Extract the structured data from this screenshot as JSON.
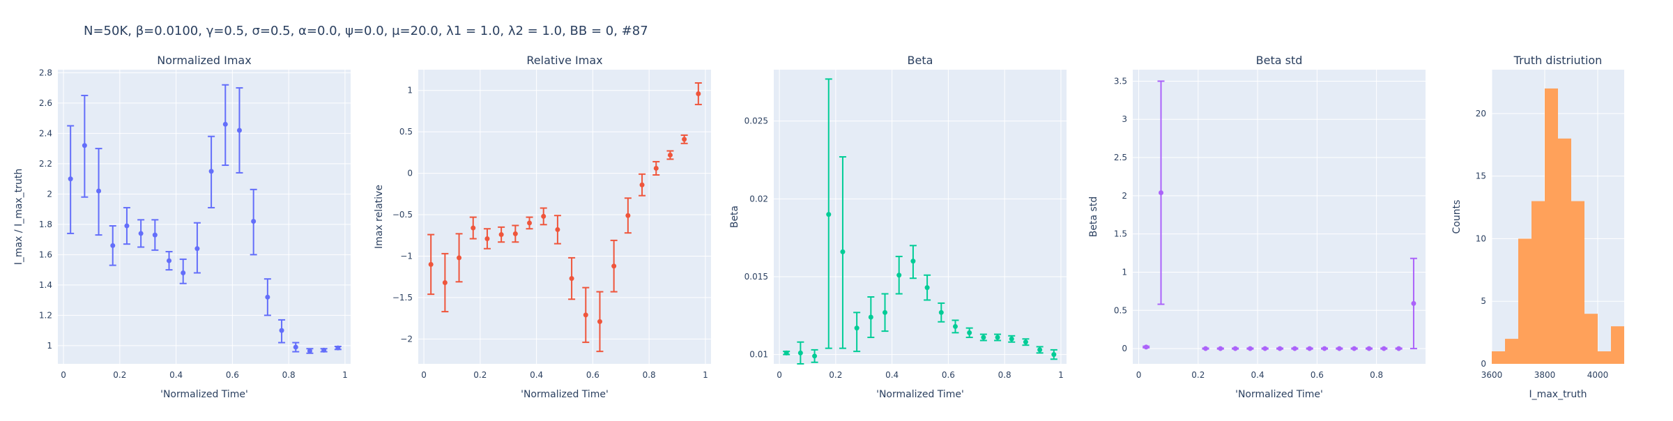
{
  "figure": {
    "suptitle": "N=50K, β=0.0100, γ=0.5, σ=0.5,  α=0.0, ψ=0.0, μ=20.0, λ1 = 1.0, λ2 = 1.0, BB = 0, #87"
  },
  "colors": {
    "plot_bg": "#e5ecf6",
    "grid": "#ffffff",
    "text": "#2a3f5f",
    "s1": "#636efa",
    "s2": "#ef553b",
    "s3": "#00cc96",
    "s4": "#ab63fa",
    "s5": "#ffa15a"
  },
  "chart_data": [
    {
      "type": "scatter",
      "title": "Normalized Imax",
      "xlabel": "'Normalized Time'",
      "ylabel": "I_max / I_max_truth",
      "xlim": [
        -0.02,
        1.02
      ],
      "ylim": [
        0.88,
        2.82
      ],
      "xticks": [
        0,
        0.2,
        0.4,
        0.6,
        0.8,
        1
      ],
      "xtick_labels": [
        "0",
        "0.2",
        "0.4",
        "0.6",
        "0.8",
        "1"
      ],
      "yticks": [
        1,
        1.2,
        1.4,
        1.6,
        1.8,
        2,
        2.2,
        2.4,
        2.6,
        2.8
      ],
      "ytick_labels": [
        "1",
        "1.2",
        "1.4",
        "1.6",
        "1.8",
        "2",
        "2.2",
        "2.4",
        "2.6",
        "2.8"
      ],
      "grid": true,
      "series": [
        {
          "color": "#636efa",
          "x": [
            0.025,
            0.075,
            0.125,
            0.175,
            0.225,
            0.275,
            0.325,
            0.375,
            0.425,
            0.475,
            0.525,
            0.575,
            0.625,
            0.675,
            0.725,
            0.775,
            0.825,
            0.875,
            0.925,
            0.975
          ],
          "y": [
            2.1,
            2.32,
            2.02,
            1.66,
            1.79,
            1.74,
            1.73,
            1.56,
            1.48,
            1.64,
            2.15,
            2.46,
            2.42,
            1.82,
            1.32,
            1.1,
            0.99,
            0.965,
            0.97,
            0.985
          ],
          "err_low": [
            0.36,
            0.34,
            0.29,
            0.13,
            0.12,
            0.09,
            0.1,
            0.06,
            0.07,
            0.16,
            0.24,
            0.27,
            0.28,
            0.22,
            0.12,
            0.08,
            0.03,
            0.015,
            0.01,
            0.01
          ],
          "err_high": [
            0.35,
            0.33,
            0.28,
            0.13,
            0.12,
            0.09,
            0.1,
            0.06,
            0.09,
            0.17,
            0.23,
            0.26,
            0.28,
            0.21,
            0.12,
            0.07,
            0.03,
            0.015,
            0.01,
            0.01
          ]
        }
      ]
    },
    {
      "type": "scatter",
      "title": "Relative Imax",
      "xlabel": "'Normalized Time'",
      "ylabel": "Imax relative",
      "xlim": [
        -0.02,
        1.02
      ],
      "ylim": [
        -2.3,
        1.25
      ],
      "xticks": [
        0,
        0.2,
        0.4,
        0.6,
        0.8,
        1
      ],
      "xtick_labels": [
        "0",
        "0.2",
        "0.4",
        "0.6",
        "0.8",
        "1"
      ],
      "yticks": [
        -2,
        -1.5,
        -1,
        -0.5,
        0,
        0.5,
        1
      ],
      "ytick_labels": [
        "−2",
        "−1.5",
        "−1",
        "−0.5",
        "0",
        "0.5",
        "1"
      ],
      "grid": true,
      "series": [
        {
          "color": "#ef553b",
          "x": [
            0.025,
            0.075,
            0.125,
            0.175,
            0.225,
            0.275,
            0.325,
            0.375,
            0.425,
            0.475,
            0.525,
            0.575,
            0.625,
            0.675,
            0.725,
            0.775,
            0.825,
            0.875,
            0.925,
            0.975
          ],
          "y": [
            -1.1,
            -1.32,
            -1.02,
            -0.66,
            -0.79,
            -0.74,
            -0.73,
            -0.6,
            -0.52,
            -0.68,
            -1.27,
            -1.71,
            -1.79,
            -1.12,
            -0.51,
            -0.14,
            0.06,
            0.22,
            0.41,
            0.96
          ],
          "err_low": [
            0.36,
            0.35,
            0.29,
            0.13,
            0.12,
            0.09,
            0.1,
            0.07,
            0.1,
            0.17,
            0.25,
            0.33,
            0.36,
            0.31,
            0.21,
            0.13,
            0.08,
            0.05,
            0.05,
            0.13
          ],
          "err_high": [
            0.36,
            0.35,
            0.29,
            0.13,
            0.12,
            0.09,
            0.1,
            0.07,
            0.1,
            0.17,
            0.25,
            0.33,
            0.36,
            0.31,
            0.21,
            0.13,
            0.08,
            0.05,
            0.05,
            0.13
          ]
        }
      ]
    },
    {
      "type": "scatter",
      "title": "Beta",
      "xlabel": "'Normalized Time'",
      "ylabel": "Beta",
      "xlim": [
        -0.02,
        1.02
      ],
      "ylim": [
        0.0094,
        0.0283
      ],
      "xticks": [
        0,
        0.2,
        0.4,
        0.6,
        0.8,
        1
      ],
      "xtick_labels": [
        "0",
        "0.2",
        "0.4",
        "0.6",
        "0.8",
        "1"
      ],
      "yticks": [
        0.01,
        0.015,
        0.02,
        0.025
      ],
      "ytick_labels": [
        "0.01",
        "0.015",
        "0.02",
        "0.025"
      ],
      "grid": true,
      "series": [
        {
          "color": "#00cc96",
          "x": [
            0.025,
            0.075,
            0.125,
            0.175,
            0.225,
            0.275,
            0.325,
            0.375,
            0.425,
            0.475,
            0.525,
            0.575,
            0.625,
            0.675,
            0.725,
            0.775,
            0.825,
            0.875,
            0.925,
            0.975
          ],
          "y": [
            0.0101,
            0.0101,
            0.0099,
            0.019,
            0.0166,
            0.0117,
            0.0124,
            0.0127,
            0.0151,
            0.016,
            0.0143,
            0.0127,
            0.0118,
            0.0114,
            0.0111,
            0.0111,
            0.011,
            0.0108,
            0.0103,
            0.01
          ],
          "err_low": [
            0.0001,
            0.0007,
            0.0004,
            0.0086,
            0.0062,
            0.0015,
            0.0013,
            0.0012,
            0.0012,
            0.0011,
            0.0008,
            0.0006,
            0.0004,
            0.0003,
            0.0002,
            0.0002,
            0.0002,
            0.0002,
            0.0002,
            0.0003
          ],
          "err_high": [
            0.0001,
            0.0007,
            0.0004,
            0.0087,
            0.0061,
            0.001,
            0.0013,
            0.0012,
            0.0012,
            0.001,
            0.0008,
            0.0006,
            0.0004,
            0.0003,
            0.0002,
            0.0002,
            0.0002,
            0.0002,
            0.0002,
            0.0003
          ]
        }
      ]
    },
    {
      "type": "scatter",
      "title": "Beta std",
      "xlabel": "'Normalized Time'",
      "ylabel": "Beta std",
      "xlim": [
        -0.02,
        0.965
      ],
      "ylim": [
        -0.2,
        3.65
      ],
      "xticks": [
        0,
        0.2,
        0.4,
        0.6,
        0.8
      ],
      "xtick_labels": [
        "0",
        "0.2",
        "0.4",
        "0.6",
        "0.8"
      ],
      "yticks": [
        0,
        0.5,
        1,
        1.5,
        2,
        2.5,
        3,
        3.5
      ],
      "ytick_labels": [
        "0",
        "0.5",
        "1",
        "1.5",
        "2",
        "2.5",
        "3",
        "3.5"
      ],
      "grid": true,
      "series": [
        {
          "color": "#ab63fa",
          "x": [
            0.025,
            0.075,
            0.225,
            0.275,
            0.325,
            0.375,
            0.425,
            0.475,
            0.525,
            0.575,
            0.625,
            0.675,
            0.725,
            0.775,
            0.825,
            0.875,
            0.925
          ],
          "y": [
            0.02,
            2.04,
            0.0,
            0.0,
            0.0,
            0.0,
            0.0,
            0.0,
            0.0,
            0.0,
            0.0,
            0.0,
            0.0,
            0.0,
            0.0,
            0.0,
            0.59
          ],
          "err_low": [
            0.01,
            1.46,
            0.005,
            0.005,
            0.005,
            0.005,
            0.005,
            0.005,
            0.005,
            0.005,
            0.005,
            0.005,
            0.005,
            0.005,
            0.005,
            0.005,
            0.59
          ],
          "err_high": [
            0.01,
            1.46,
            0.005,
            0.005,
            0.005,
            0.005,
            0.005,
            0.005,
            0.005,
            0.005,
            0.005,
            0.005,
            0.005,
            0.005,
            0.005,
            0.005,
            0.59
          ]
        }
      ]
    },
    {
      "type": "histogram",
      "title": "Truth distriution",
      "xlabel": "I_max_truth",
      "ylabel": "Counts",
      "xlim": [
        3600,
        4100
      ],
      "ylim": [
        0,
        23.5
      ],
      "xticks": [
        3600,
        3800,
        4000
      ],
      "xtick_labels": [
        "3600",
        "3800",
        "4000"
      ],
      "yticks": [
        0,
        5,
        10,
        15,
        20
      ],
      "ytick_labels": [
        "0",
        "5",
        "10",
        "15",
        "20"
      ],
      "grid": true,
      "color": "#ffa15a",
      "bin_width": 50,
      "bin_starts": [
        3600,
        3650,
        3700,
        3750,
        3800,
        3850,
        3900,
        3950,
        4000,
        4050
      ],
      "counts": [
        1,
        2,
        10,
        13,
        22,
        18,
        13,
        4,
        1,
        3
      ]
    }
  ]
}
